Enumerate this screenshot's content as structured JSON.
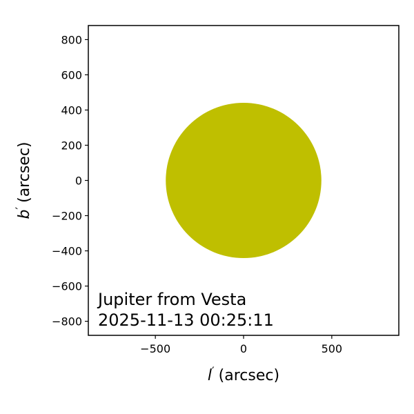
{
  "chart_data": {
    "type": "scatter",
    "title": "",
    "xlabel_symbol": "l",
    "xlabel_unit": "(arcsec)",
    "ylabel_symbol": "b",
    "ylabel_unit": "(arcsec)",
    "prime": "′",
    "xlim": [
      -880,
      880
    ],
    "ylim": [
      -880,
      880
    ],
    "x_ticks": [
      -500,
      0,
      500
    ],
    "x_tick_labels": [
      "−500",
      "0",
      "500"
    ],
    "y_ticks": [
      -800,
      -600,
      -400,
      -200,
      0,
      200,
      400,
      600,
      800
    ],
    "y_tick_labels": [
      "−800",
      "−600",
      "−400",
      "−200",
      "0",
      "200",
      "400",
      "600",
      "800"
    ],
    "grid": false,
    "disk": {
      "name": "Jupiter",
      "center_x": 0,
      "center_y": 0,
      "radius": 441,
      "color": "#bfbf00"
    },
    "annotation_lines": [
      "Jupiter from Vesta",
      "2025-11-13 00:25:11"
    ]
  }
}
